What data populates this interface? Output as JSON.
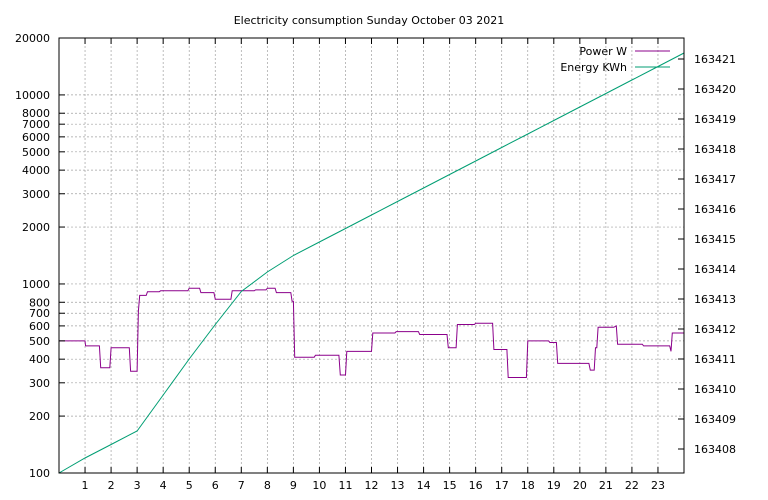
{
  "chart_data": {
    "type": "line",
    "title": "Electricity consumption Sunday October 03 2021",
    "xlabel": "",
    "ylabel": "",
    "y2label": "",
    "xlim": [
      0,
      24
    ],
    "ylim": [
      100,
      20000
    ],
    "yscale": "log",
    "y2lim": [
      163407.2,
      163421.7
    ],
    "grid": true,
    "legend_position": "top-right",
    "x_ticks": [
      1,
      2,
      3,
      4,
      5,
      6,
      7,
      8,
      9,
      10,
      11,
      12,
      13,
      14,
      15,
      16,
      17,
      18,
      19,
      20,
      21,
      22,
      23
    ],
    "y_ticks": [
      {
        "value": 100,
        "label": "100"
      },
      {
        "value": 200,
        "label": "200"
      },
      {
        "value": 300,
        "label": "300"
      },
      {
        "value": 400,
        "label": "400"
      },
      {
        "value": 500,
        "label": "500"
      },
      {
        "value": 600,
        "label": "600"
      },
      {
        "value": 700,
        "label": "700"
      },
      {
        "value": 800,
        "label": "800"
      },
      {
        "value": 1000,
        "label": "1000"
      },
      {
        "value": 2000,
        "label": "2000"
      },
      {
        "value": 3000,
        "label": "3000"
      },
      {
        "value": 4000,
        "label": "4000"
      },
      {
        "value": 5000,
        "label": "5000"
      },
      {
        "value": 6000,
        "label": "6000"
      },
      {
        "value": 7000,
        "label": "7000"
      },
      {
        "value": 8000,
        "label": "8000"
      },
      {
        "value": 10000,
        "label": "10000"
      },
      {
        "value": 20000,
        "label": "20000"
      }
    ],
    "y2_ticks": [
      163408,
      163409,
      163410,
      163411,
      163412,
      163413,
      163414,
      163415,
      163416,
      163417,
      163418,
      163419,
      163420,
      163421
    ],
    "series": [
      {
        "name": "Power W",
        "axis": "y",
        "color": "#8b008b",
        "x": [
          0,
          1,
          1.02,
          1.55,
          1.6,
          1.95,
          2.0,
          2.3,
          2.7,
          2.75,
          3.0,
          3.05,
          3.1,
          3.35,
          3.4,
          3.85,
          3.9,
          4.95,
          5.0,
          5.4,
          5.45,
          5.95,
          6.0,
          6.6,
          6.65,
          7.5,
          7.55,
          7.95,
          8.0,
          8.3,
          8.35,
          8.9,
          8.95,
          9.0,
          9.05,
          9.8,
          9.85,
          10.75,
          10.8,
          11.0,
          11.05,
          12.0,
          12.05,
          12.9,
          12.95,
          13.8,
          13.85,
          14.9,
          14.95,
          15.25,
          15.3,
          15.95,
          16.0,
          16.65,
          16.7,
          17.2,
          17.25,
          17.95,
          18.0,
          18.2,
          18.25,
          18.8,
          18.85,
          19.1,
          19.15,
          19.9,
          19.95,
          20.35,
          20.4,
          20.55,
          20.6,
          20.65,
          20.7,
          21.25,
          21.3,
          21.4,
          21.45,
          22.4,
          22.45,
          23.0,
          23.05,
          23.4,
          23.45,
          23.5,
          23.55,
          24.0
        ],
        "y": [
          500,
          500,
          470,
          470,
          360,
          360,
          460,
          460,
          460,
          345,
          345,
          720,
          870,
          870,
          910,
          910,
          920,
          920,
          950,
          950,
          900,
          900,
          830,
          830,
          920,
          920,
          930,
          930,
          950,
          950,
          900,
          900,
          810,
          810,
          410,
          410,
          420,
          420,
          330,
          330,
          440,
          440,
          550,
          550,
          560,
          560,
          540,
          540,
          460,
          460,
          610,
          610,
          620,
          620,
          450,
          450,
          320,
          320,
          500,
          500,
          500,
          500,
          490,
          490,
          380,
          380,
          380,
          380,
          350,
          350,
          460,
          460,
          590,
          590,
          590,
          600,
          480,
          480,
          470,
          470,
          470,
          470,
          470,
          440,
          550,
          550
        ]
      },
      {
        "name": "Energy KWh",
        "axis": "y2",
        "color": "#009e73",
        "x": [
          0,
          1,
          2,
          3,
          4,
          5,
          6,
          7,
          8,
          9,
          10,
          11,
          12,
          13,
          14,
          15,
          16,
          17,
          18,
          19,
          20,
          21,
          22,
          23,
          24
        ],
        "y": [
          163407.2,
          163407.7,
          163408.15,
          163408.6,
          163409.8,
          163411.0,
          163412.15,
          163413.25,
          163413.9,
          163414.45,
          163414.9,
          163415.35,
          163415.8,
          163416.25,
          163416.7,
          163417.15,
          163417.6,
          163418.05,
          163418.5,
          163418.95,
          163419.4,
          163419.85,
          163420.3,
          163420.75,
          163421.2
        ]
      }
    ]
  }
}
